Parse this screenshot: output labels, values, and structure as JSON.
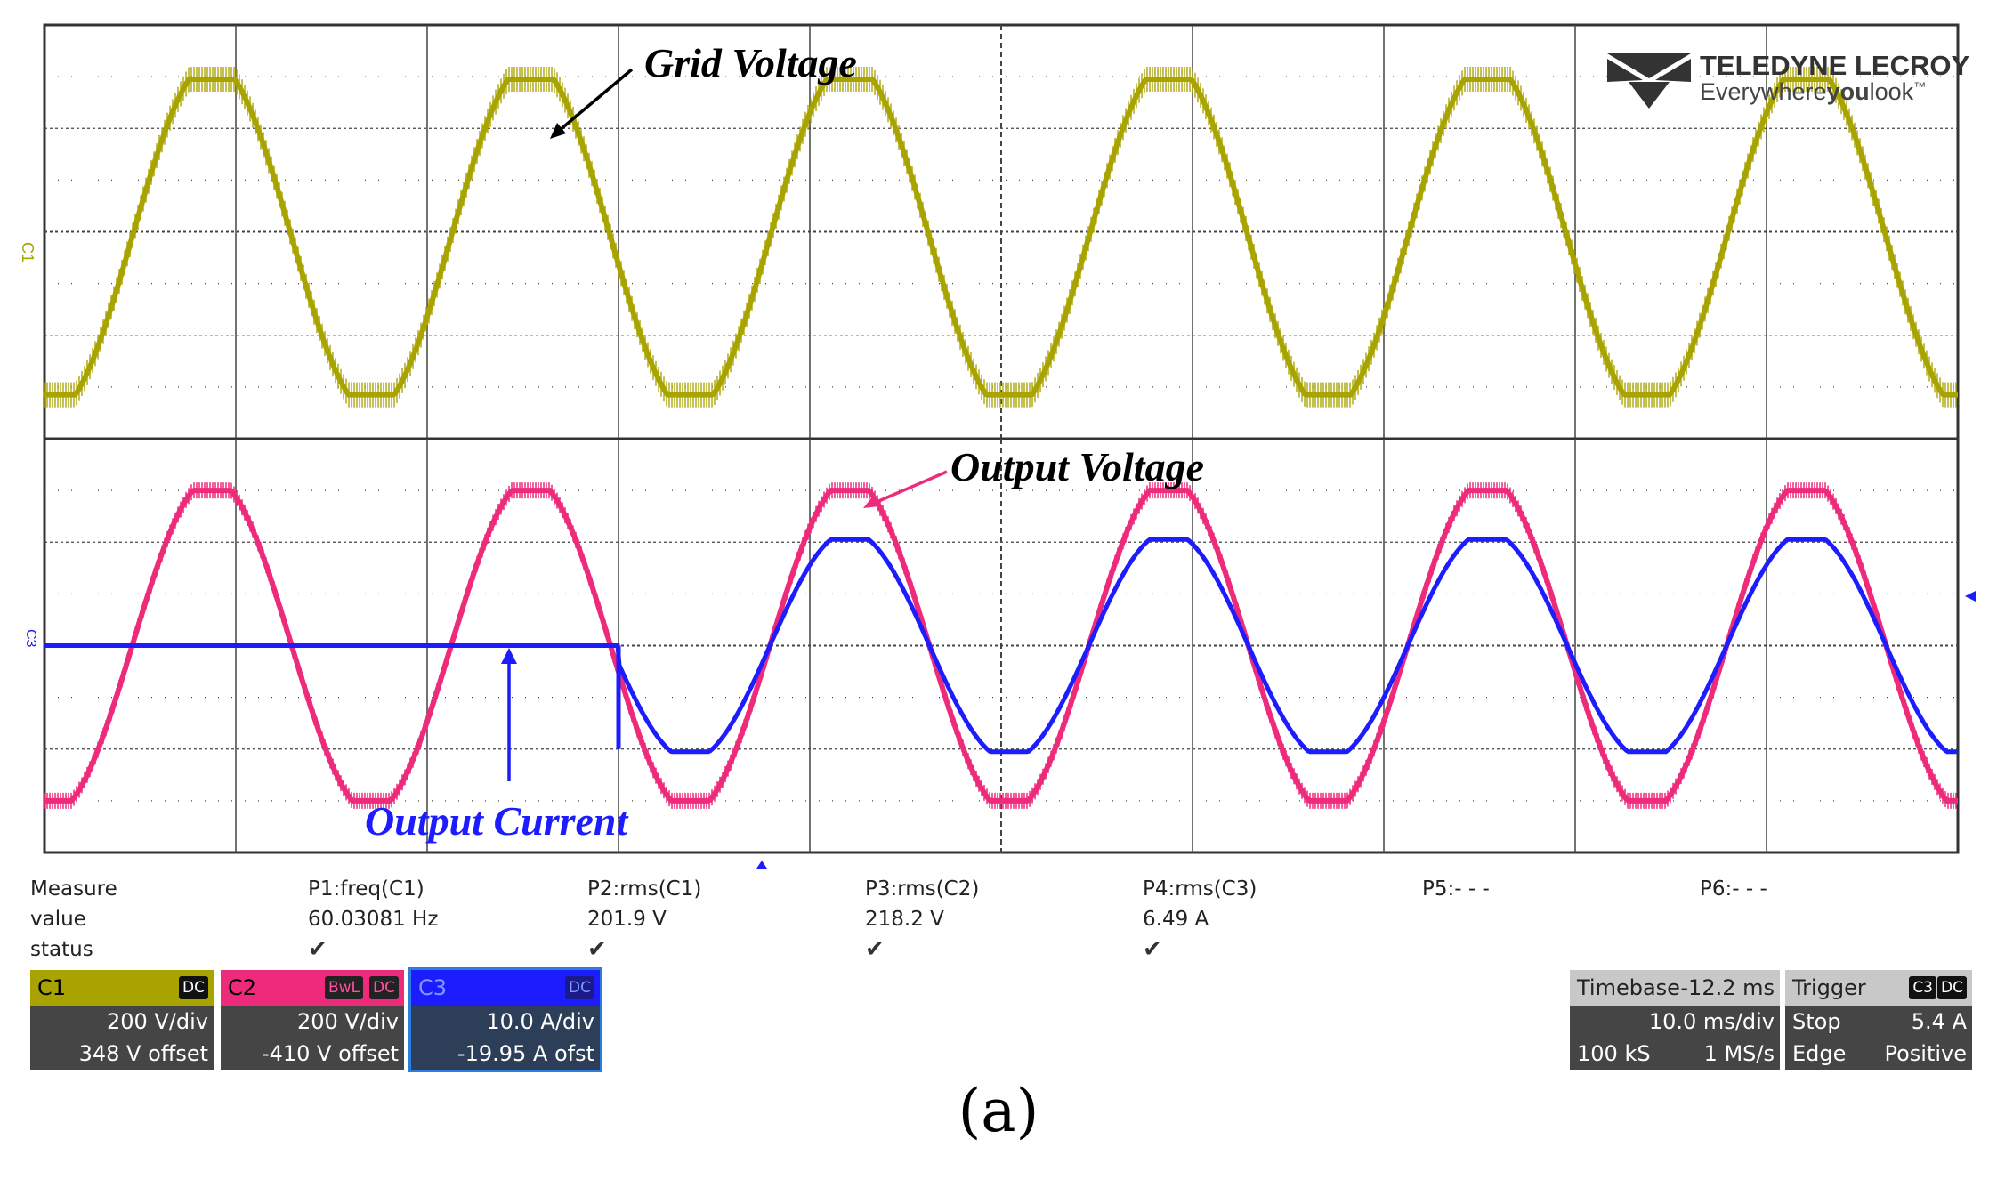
{
  "colors": {
    "c1": "#a9a300",
    "c2": "#ee2a7b",
    "c3": "#1c1cff",
    "grid": "#333333",
    "panel": "#454545"
  },
  "brand": {
    "name": "TELEDYNE LECROY",
    "tagline_pre": "Everywhere",
    "tagline_bold": "you",
    "tagline_post": "look",
    "tm": "™"
  },
  "annotations": {
    "grid_voltage": "Grid Voltage",
    "output_voltage": "Output Voltage",
    "output_current": "Output Current"
  },
  "markers": {
    "upper_channel": "C1",
    "lower_channel": "C3",
    "lower_channel_alt": "C2"
  },
  "measure": {
    "row_labels": [
      "Measure",
      "value",
      "status"
    ],
    "params": [
      {
        "name": "P1:freq(C1)",
        "value": "60.03081 Hz",
        "status": "✔"
      },
      {
        "name": "P2:rms(C1)",
        "value": "201.9 V",
        "status": "✔"
      },
      {
        "name": "P3:rms(C2)",
        "value": "218.2 V",
        "status": "✔"
      },
      {
        "name": "P4:rms(C3)",
        "value": "6.49 A",
        "status": "✔"
      },
      {
        "name": "P5:- - -",
        "value": "",
        "status": ""
      },
      {
        "name": "P6:- - -",
        "value": "",
        "status": ""
      }
    ]
  },
  "channels": [
    {
      "label": "C1",
      "tags": [
        "DC"
      ],
      "scale": "200 V/div",
      "offset": "348 V offset"
    },
    {
      "label": "C2",
      "tags": [
        "BwL",
        "DC"
      ],
      "scale": "200 V/div",
      "offset": "-410 V offset"
    },
    {
      "label": "C3",
      "tags": [
        "DC"
      ],
      "scale": "10.0 A/div",
      "offset": "-19.95 A ofst"
    }
  ],
  "timebase": {
    "label": "Timebase",
    "delay": "-12.2 ms",
    "scale": "10.0 ms/div",
    "samples": "100 kS",
    "rate": "1 MS/s"
  },
  "trigger": {
    "label": "Trigger",
    "tags": [
      "C3",
      "DC"
    ],
    "mode": "Stop",
    "level": "5.4 A",
    "type": "Edge",
    "slope": "Positive"
  },
  "caption": "(a)",
  "chart_data": [
    {
      "type": "line",
      "title": "",
      "xlabel": "",
      "ylabel": "",
      "x_divisions": 10,
      "y_divisions": 8,
      "grid": true,
      "series": [
        {
          "channel": "C1",
          "color": "#a9a300",
          "frequency_hz": 60.03,
          "rms_v": 201.9,
          "scale_per_div": "200 V/div",
          "waveform": "trapezoidal sine with switching ripple",
          "peak_div": 2.8,
          "cycles": 6
        }
      ]
    },
    {
      "type": "line",
      "title": "",
      "xlabel": "",
      "ylabel": "",
      "x_divisions": 10,
      "y_divisions": 8,
      "grid": true,
      "series": [
        {
          "channel": "C2",
          "color": "#ee2a7b",
          "rms_v": 218.2,
          "scale_per_div": "200 V/div",
          "waveform": "trapezoidal sine with switching ripple",
          "peak_div": 3.0,
          "cycles": 6
        },
        {
          "channel": "C3",
          "color": "#1c1cff",
          "rms_a": 6.49,
          "scale_per_div": "10.0 A/div",
          "waveform": "zero until 3.0 div then sine",
          "step_at_div": 3.0,
          "peak_div": 2.1
        }
      ]
    }
  ]
}
